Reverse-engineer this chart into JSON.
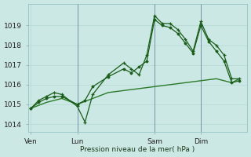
{
  "background_color": "#cce8e4",
  "grid_color": "#b0d8d4",
  "line_color_dark": "#1a5c1a",
  "line_color_mid": "#2a7a2a",
  "xlabel_text": "Pression niveau de la mer( hPa )",
  "yticks": [
    1014,
    1015,
    1016,
    1017,
    1018,
    1019
  ],
  "xtick_labels": [
    "Ven",
    "Lun",
    "Sam",
    "Dim"
  ],
  "xtick_positions": [
    0,
    30,
    80,
    110
  ],
  "ylim": [
    1013.6,
    1020.1
  ],
  "xlim": [
    -2,
    140
  ],
  "series1_x": [
    0,
    5,
    10,
    15,
    20,
    30,
    35,
    40,
    50,
    60,
    65,
    70,
    75,
    80,
    85,
    90,
    95,
    100,
    105,
    110,
    115,
    120,
    125,
    130,
    135
  ],
  "series1_y": [
    1014.8,
    1015.2,
    1015.4,
    1015.6,
    1015.5,
    1014.9,
    1014.1,
    1015.5,
    1016.5,
    1017.1,
    1016.8,
    1016.5,
    1017.5,
    1019.5,
    1019.1,
    1019.1,
    1018.8,
    1018.3,
    1017.7,
    1019.2,
    1018.3,
    1018.0,
    1017.5,
    1016.3,
    1016.3
  ],
  "series2_x": [
    0,
    5,
    10,
    15,
    20,
    30,
    35,
    40,
    50,
    60,
    65,
    70,
    75,
    80,
    85,
    90,
    95,
    100,
    105,
    110,
    115,
    120,
    125,
    130,
    135
  ],
  "series2_y": [
    1014.8,
    1015.1,
    1015.3,
    1015.4,
    1015.4,
    1015.0,
    1015.2,
    1015.9,
    1016.4,
    1016.8,
    1016.6,
    1016.9,
    1017.2,
    1019.3,
    1019.0,
    1018.9,
    1018.6,
    1018.1,
    1017.6,
    1019.0,
    1018.2,
    1017.7,
    1017.2,
    1016.1,
    1016.2
  ],
  "series3_x": [
    0,
    10,
    20,
    30,
    50,
    60,
    70,
    80,
    90,
    100,
    110,
    120,
    130,
    135
  ],
  "series3_y": [
    1014.8,
    1015.1,
    1015.3,
    1015.0,
    1015.6,
    1015.7,
    1015.8,
    1015.9,
    1016.0,
    1016.1,
    1016.2,
    1016.3,
    1016.1,
    1016.3
  ],
  "vline_positions": [
    30,
    80,
    110
  ],
  "vline_color": "#446688"
}
